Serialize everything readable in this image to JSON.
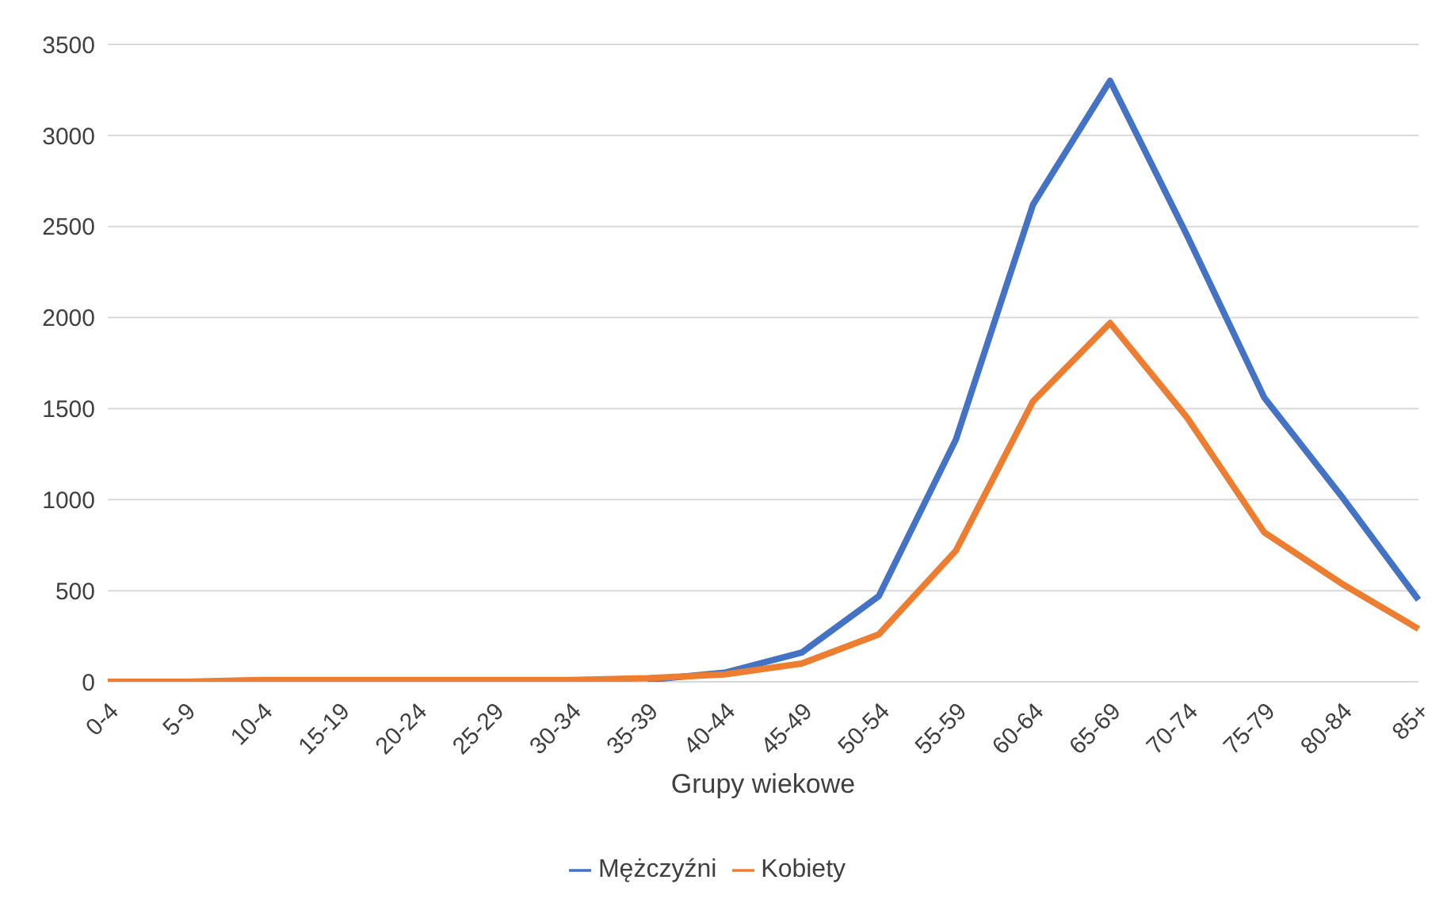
{
  "chart_data": {
    "type": "line",
    "xlabel": "Grupy wiekowe",
    "categories": [
      "0-4",
      "5-9",
      "10-4",
      "15-19",
      "20-24",
      "25-29",
      "30-34",
      "35-39",
      "40-44",
      "45-49",
      "50-54",
      "55-59",
      "60-64",
      "65-69",
      "70-74",
      "75-79",
      "80-84",
      "85+"
    ],
    "series": [
      {
        "name": "Mężczyźni",
        "color": "#4472c4",
        "values": [
          null,
          null,
          null,
          null,
          null,
          null,
          null,
          10,
          50,
          160,
          470,
          1330,
          2620,
          3300,
          2450,
          1560,
          1020,
          450
        ]
      },
      {
        "name": "Kobiety",
        "color": "#ed7d31",
        "values": [
          0,
          0,
          10,
          10,
          10,
          10,
          10,
          20,
          40,
          100,
          260,
          720,
          1540,
          1970,
          1450,
          820,
          540,
          290
        ]
      }
    ],
    "ylim": [
      0,
      3500
    ],
    "yticks": [
      0,
      500,
      1000,
      1500,
      2000,
      2500,
      3000,
      3500
    ],
    "grid": "y",
    "legend": "bottom",
    "marker": "none",
    "line_style": "solid"
  }
}
